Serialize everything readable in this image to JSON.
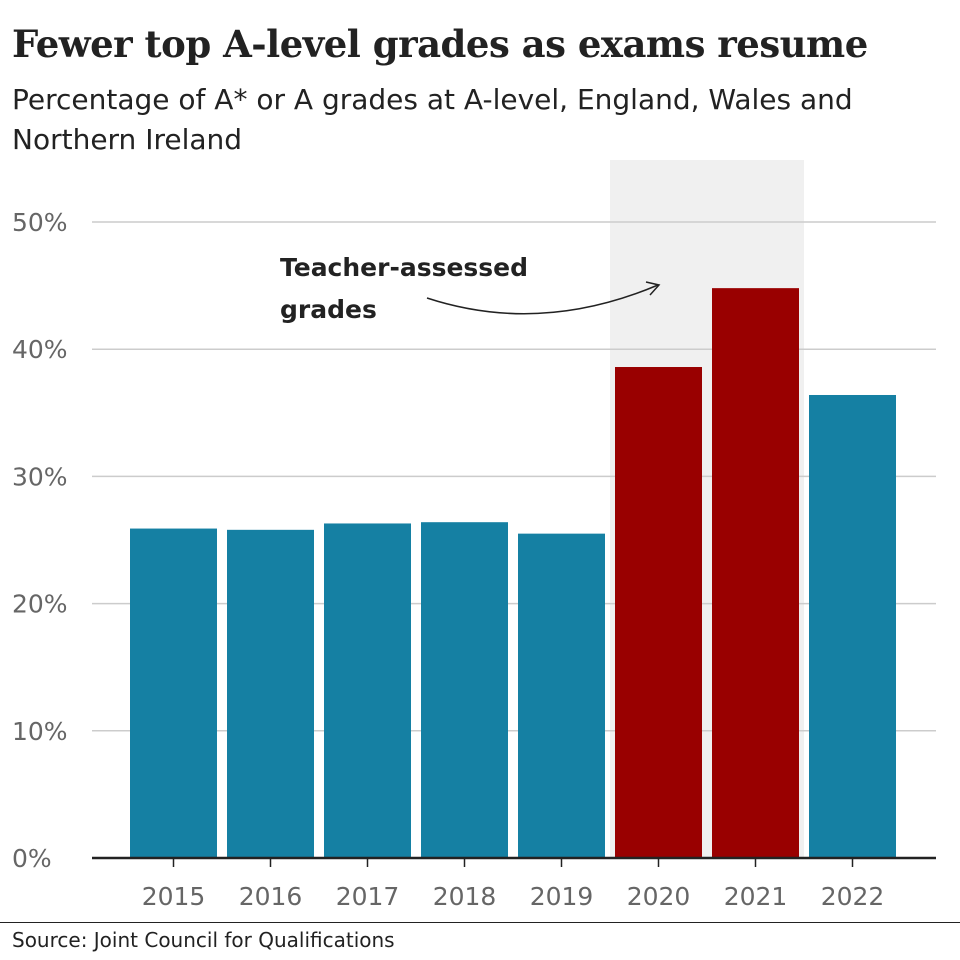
{
  "title": "Fewer top A-level grades as exams resume",
  "subtitle": "Percentage of A* or A grades at A-level, England, Wales and Northern Ireland",
  "source": "Source: Joint Council for Qualifications",
  "colors": {
    "exam_bar": "#1580a3",
    "teacher_bar": "#990000",
    "highlight_band": "#f0f0f0",
    "gridline": "#cccccc",
    "axis": "#222222",
    "tick_label": "#666666"
  },
  "annotation": {
    "lines": [
      "Teacher-assessed",
      "grades"
    ]
  },
  "chart_data": {
    "type": "bar",
    "title": "Fewer top A-level grades as exams resume",
    "subtitle": "Percentage of A* or A grades at A-level, England, Wales and Northern Ireland",
    "xlabel": "",
    "ylabel": "",
    "categories": [
      "2015",
      "2016",
      "2017",
      "2018",
      "2019",
      "2020",
      "2021",
      "2022"
    ],
    "values": [
      25.9,
      25.8,
      26.3,
      26.4,
      25.5,
      38.6,
      44.8,
      36.4
    ],
    "bar_groups": [
      "exam",
      "exam",
      "exam",
      "exam",
      "exam",
      "teacher",
      "teacher",
      "exam"
    ],
    "highlighted_categories": [
      "2020",
      "2021"
    ],
    "annotation": "Teacher-assessed grades",
    "ylim": [
      0,
      50
    ],
    "yticks": [
      0,
      10,
      20,
      30,
      40,
      50
    ],
    "ytick_labels": [
      "0%",
      "10%",
      "20%",
      "30%",
      "40%",
      "50%"
    ],
    "grid": true,
    "legend": "none"
  }
}
